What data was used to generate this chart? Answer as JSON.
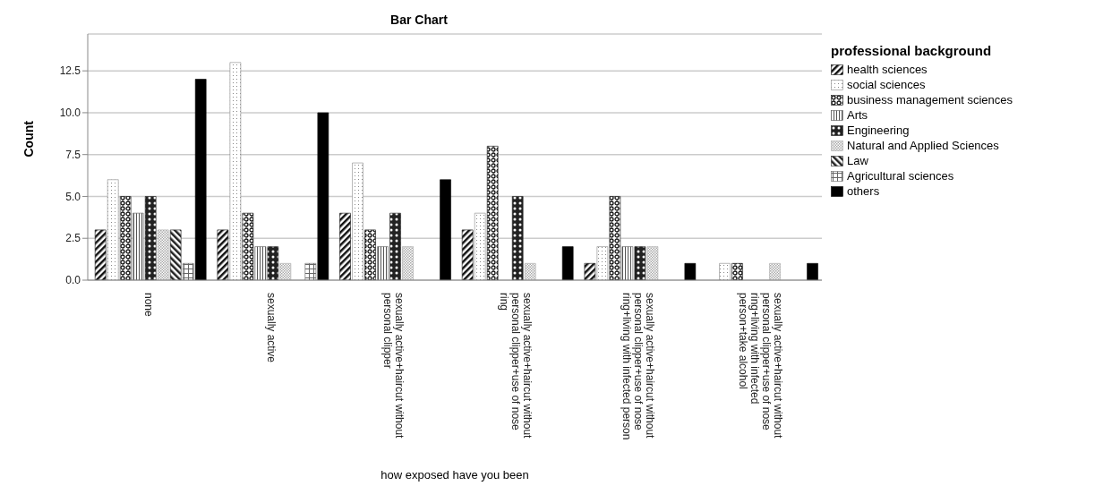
{
  "chart_data": {
    "type": "bar",
    "title": "Bar Chart",
    "xlabel": "how exposed have you been",
    "ylabel": "Count",
    "legend_title": "professional background",
    "categories": [
      "none",
      "sexually active",
      "sexually active+haircut without personal clipper",
      "sexually active+haircut without personal clipper+use of nose ring",
      "sexually active+haircut without personal clipper+use of nose ring+living with infected person",
      "sexually active+haircut without personal clipper+use of nose ring+living with infected person+take alcohol"
    ],
    "series": [
      {
        "name": "health sciences",
        "color": "#111111",
        "values": [
          3,
          3,
          4,
          3,
          1,
          0
        ]
      },
      {
        "name": "social sciences",
        "color": "#888888",
        "values": [
          6,
          13,
          7,
          4,
          2,
          1
        ]
      },
      {
        "name": "business management sciences",
        "color": "#111111",
        "values": [
          5,
          4,
          3,
          8,
          5,
          1
        ]
      },
      {
        "name": "Arts",
        "color": "#555555",
        "values": [
          4,
          2,
          2,
          0,
          2,
          0
        ]
      },
      {
        "name": "Engineering",
        "color": "#222222",
        "values": [
          5,
          2,
          4,
          5,
          2,
          0
        ]
      },
      {
        "name": "Natural and Applied Sciences",
        "color": "#aaaaaa",
        "values": [
          3,
          1,
          2,
          1,
          2,
          1
        ]
      },
      {
        "name": "Law",
        "color": "#222222",
        "values": [
          3,
          0,
          0,
          0,
          0,
          0
        ]
      },
      {
        "name": "Agricultural sciences",
        "color": "#666666",
        "values": [
          1,
          1,
          0,
          0,
          0,
          0
        ]
      },
      {
        "name": "others",
        "color": "#000000",
        "values": [
          12,
          10,
          6,
          2,
          1,
          1
        ]
      }
    ],
    "ylim": [
      0,
      14.7
    ],
    "yticks": [
      {
        "value": 0,
        "label": "0.0"
      },
      {
        "value": 2.5,
        "label": "2.5"
      },
      {
        "value": 5,
        "label": "5.0"
      },
      {
        "value": 7.5,
        "label": "7.5"
      },
      {
        "value": 10,
        "label": "10.0"
      },
      {
        "value": 12.5,
        "label": "12.5"
      }
    ],
    "grid": "y",
    "legend": "right"
  }
}
